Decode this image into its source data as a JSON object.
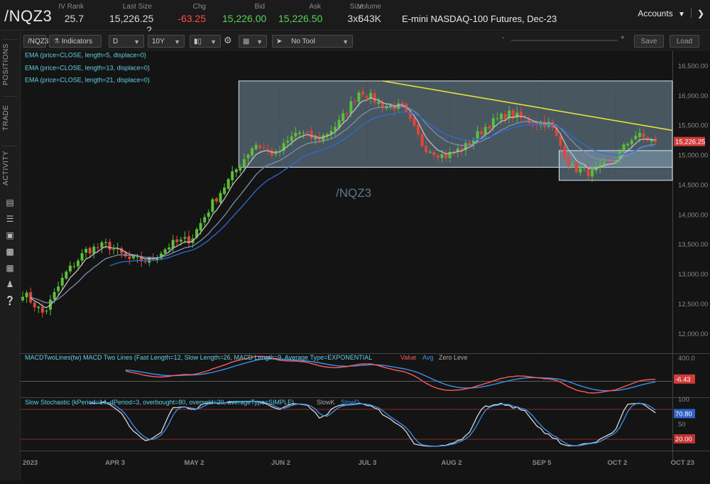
{
  "header": {
    "symbol": "/NQZ3",
    "quote": [
      {
        "label": "IV Rank",
        "value": "25.7",
        "tone": "plain"
      },
      {
        "label": "Last Size",
        "value": "15,226.25 2",
        "tone": "plain"
      },
      {
        "label": "Chg",
        "value": "-63.25",
        "tone": "red"
      },
      {
        "label": "Bid",
        "value": "15,226.00",
        "tone": "grn"
      },
      {
        "label": "Ask",
        "value": "15,226.50",
        "tone": "grn"
      },
      {
        "label": "Size",
        "value": "3x5",
        "tone": "plain"
      },
      {
        "label": "Volume",
        "value": "643K",
        "tone": "plain"
      }
    ],
    "description": "E-mini NASDAQ-100 Futures, Dec-23",
    "accounts_label": "Accounts"
  },
  "sidebar": {
    "tabs": [
      "POSITIONS",
      "TRADE",
      "ACTIVITY"
    ],
    "icons": [
      "document-icon",
      "list-icon",
      "briefcase-icon",
      "chart-icon",
      "grid-icon",
      "people-icon",
      "help-icon"
    ]
  },
  "toolbar": {
    "symbol_field": "/NQZ3",
    "indicators_label": "Indicators",
    "aggregation": "D",
    "range": "10Y",
    "drawing_tool": "No Tool",
    "save_label": "Save",
    "load_label": "Load"
  },
  "studies": {
    "ema_labels": [
      "EMA (price=CLOSE, length=5, displace=0)",
      "EMA (price=CLOSE, length=13, displace=0)",
      "EMA (price=CLOSE, length=21, displace=0)"
    ],
    "watermark": "/NQZ3",
    "macd_label": "MACDTwoLines(tw) MACD Two Lines (Fast Length=12, Slow Length=26, MACD Length=9, Average Type=EXPONENTIAL",
    "macd_legend": [
      "Value",
      "Avg",
      "Zero Leve"
    ],
    "stoch_label": "Slow Stochastic (kPeriod=14, dPeriod=3, overbought=80, oversold=20, averageType=SIMPLE)",
    "stoch_legend": [
      "SlowK",
      "SlowD"
    ]
  },
  "colors": {
    "up": "#5bbf3a",
    "down": "#e0453e",
    "ema5": "#bfbfbf",
    "ema13": "#7a8fb5",
    "ema21": "#2e6ad6",
    "trendline": "#e6e03a",
    "box": "#9fc3dc",
    "macd_value": "#ff5a5a",
    "macd_avg": "#3d8ff0",
    "stoch_k": "#d8d8d8",
    "stoch_d": "#3d8ff0",
    "study_text": "#5fd3e6"
  },
  "chart_data": {
    "type": "candlestick",
    "price_axis": {
      "ticks": [
        12000,
        12500,
        13000,
        13500,
        14000,
        14500,
        15000,
        15500,
        16000,
        16500
      ],
      "range": [
        11700,
        16750
      ],
      "last_price": "15,226.25",
      "last_price_value": 15226
    },
    "time_axis": {
      "labels": [
        "2023",
        "APR 3",
        "MAY 2",
        "JUN 2",
        "JUL 3",
        "AUG 2",
        "SEP 5",
        "OCT 2",
        "OCT 23"
      ],
      "label_index": [
        0,
        23,
        43,
        65,
        87,
        108,
        131,
        150,
        166
      ]
    },
    "candles_count": 161,
    "weekly_anchors_close": [
      12700,
      12330,
      13000,
      13400,
      13500,
      13250,
      13230,
      13500,
      13600,
      14200,
      14700,
      15200,
      15000,
      15400,
      15250,
      15550,
      16100,
      15850,
      15800,
      15150,
      14980,
      15150,
      15500,
      15700,
      15580,
      15520,
      14800,
      14700,
      14900,
      15350,
      15230
    ],
    "consolidation_boxes": [
      {
        "date_range": "JUN 1 – OCT 23",
        "price_range": [
          14800,
          16250
        ]
      },
      {
        "date_range": "SEP 18 – OCT 23",
        "price_range": [
          14580,
          15080
        ]
      }
    ],
    "trendline": {
      "from": {
        "date": "JUL 19",
        "price": 16250
      },
      "to": {
        "date": "OCT 23",
        "price": 15420
      }
    },
    "macd": {
      "axis_ticks": [
        400,
        0
      ],
      "range": [
        -250,
        450
      ],
      "value_label": "-6.43"
    },
    "stochastic": {
      "axis_ticks": [
        100,
        50
      ],
      "overbought": 80,
      "oversold": 20,
      "slowd_label": "70.80",
      "oversold_label": "20.00"
    }
  }
}
